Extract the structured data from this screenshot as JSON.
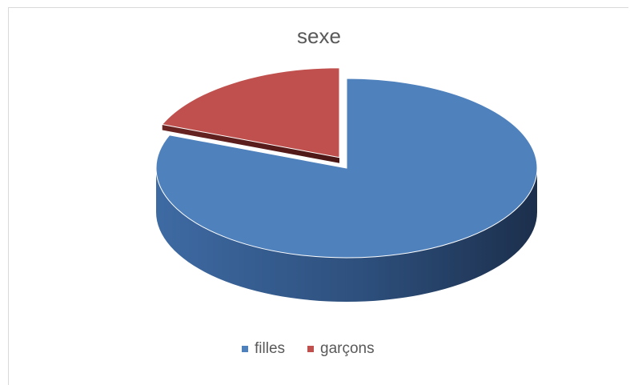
{
  "chart_data": {
    "type": "pie",
    "title": "sexe",
    "style": "3d-exploded",
    "categories": [
      "filles",
      "garçons"
    ],
    "values": [
      81,
      19
    ],
    "colors": [
      "#4f81bd",
      "#c0504d"
    ],
    "legend": "bottom"
  }
}
